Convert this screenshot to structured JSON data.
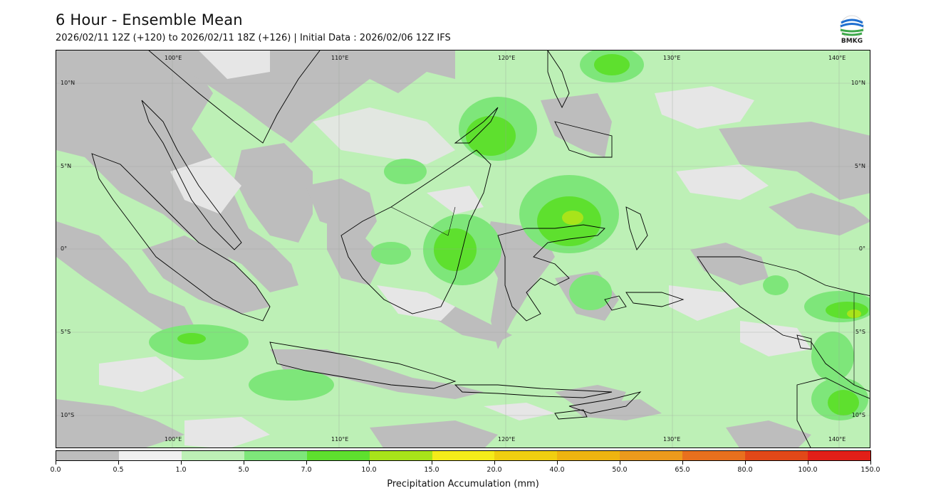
{
  "header": {
    "title": "6 Hour - Ensemble Mean",
    "subtitle": "2026/02/11 12Z (+120) to 2026/02/11 18Z (+126) | Initial Data : 2026/02/06 12Z IFS"
  },
  "logo": {
    "text": "BMKG",
    "icon": "bmkg-logo-icon"
  },
  "map": {
    "lon_labels": [
      "100°E",
      "110°E",
      "120°E",
      "130°E",
      "140°E"
    ],
    "lat_labels": [
      "10°N",
      "5°N",
      "0°",
      "5°S",
      "10°S"
    ],
    "colors": {
      "ocean_low": "#bdf0b6",
      "no_rain": "#bdbdbd",
      "light": "#e6e6e6",
      "moderate": "#7ee67a",
      "heavy": "#5ee02e",
      "very_heavy": "#a8e41a",
      "land_outline": "#000000"
    }
  },
  "colorbar": {
    "title": "Precipitation Accumulation (mm)",
    "labels": [
      "0.0",
      "0.5",
      "1.0",
      "5.0",
      "7.0",
      "10.0",
      "15.0",
      "20.0",
      "40.0",
      "50.0",
      "65.0",
      "80.0",
      "100.0",
      "150.0"
    ],
    "colors": [
      "#bdbdbd",
      "#f0f0f0",
      "#bdf0b6",
      "#7ee67a",
      "#5ee02e",
      "#a8e41a",
      "#f5ec1a",
      "#f0cf10",
      "#eeb410",
      "#ec9a1c",
      "#e8701e",
      "#e24818",
      "#e21f18",
      "#e012b4"
    ]
  }
}
